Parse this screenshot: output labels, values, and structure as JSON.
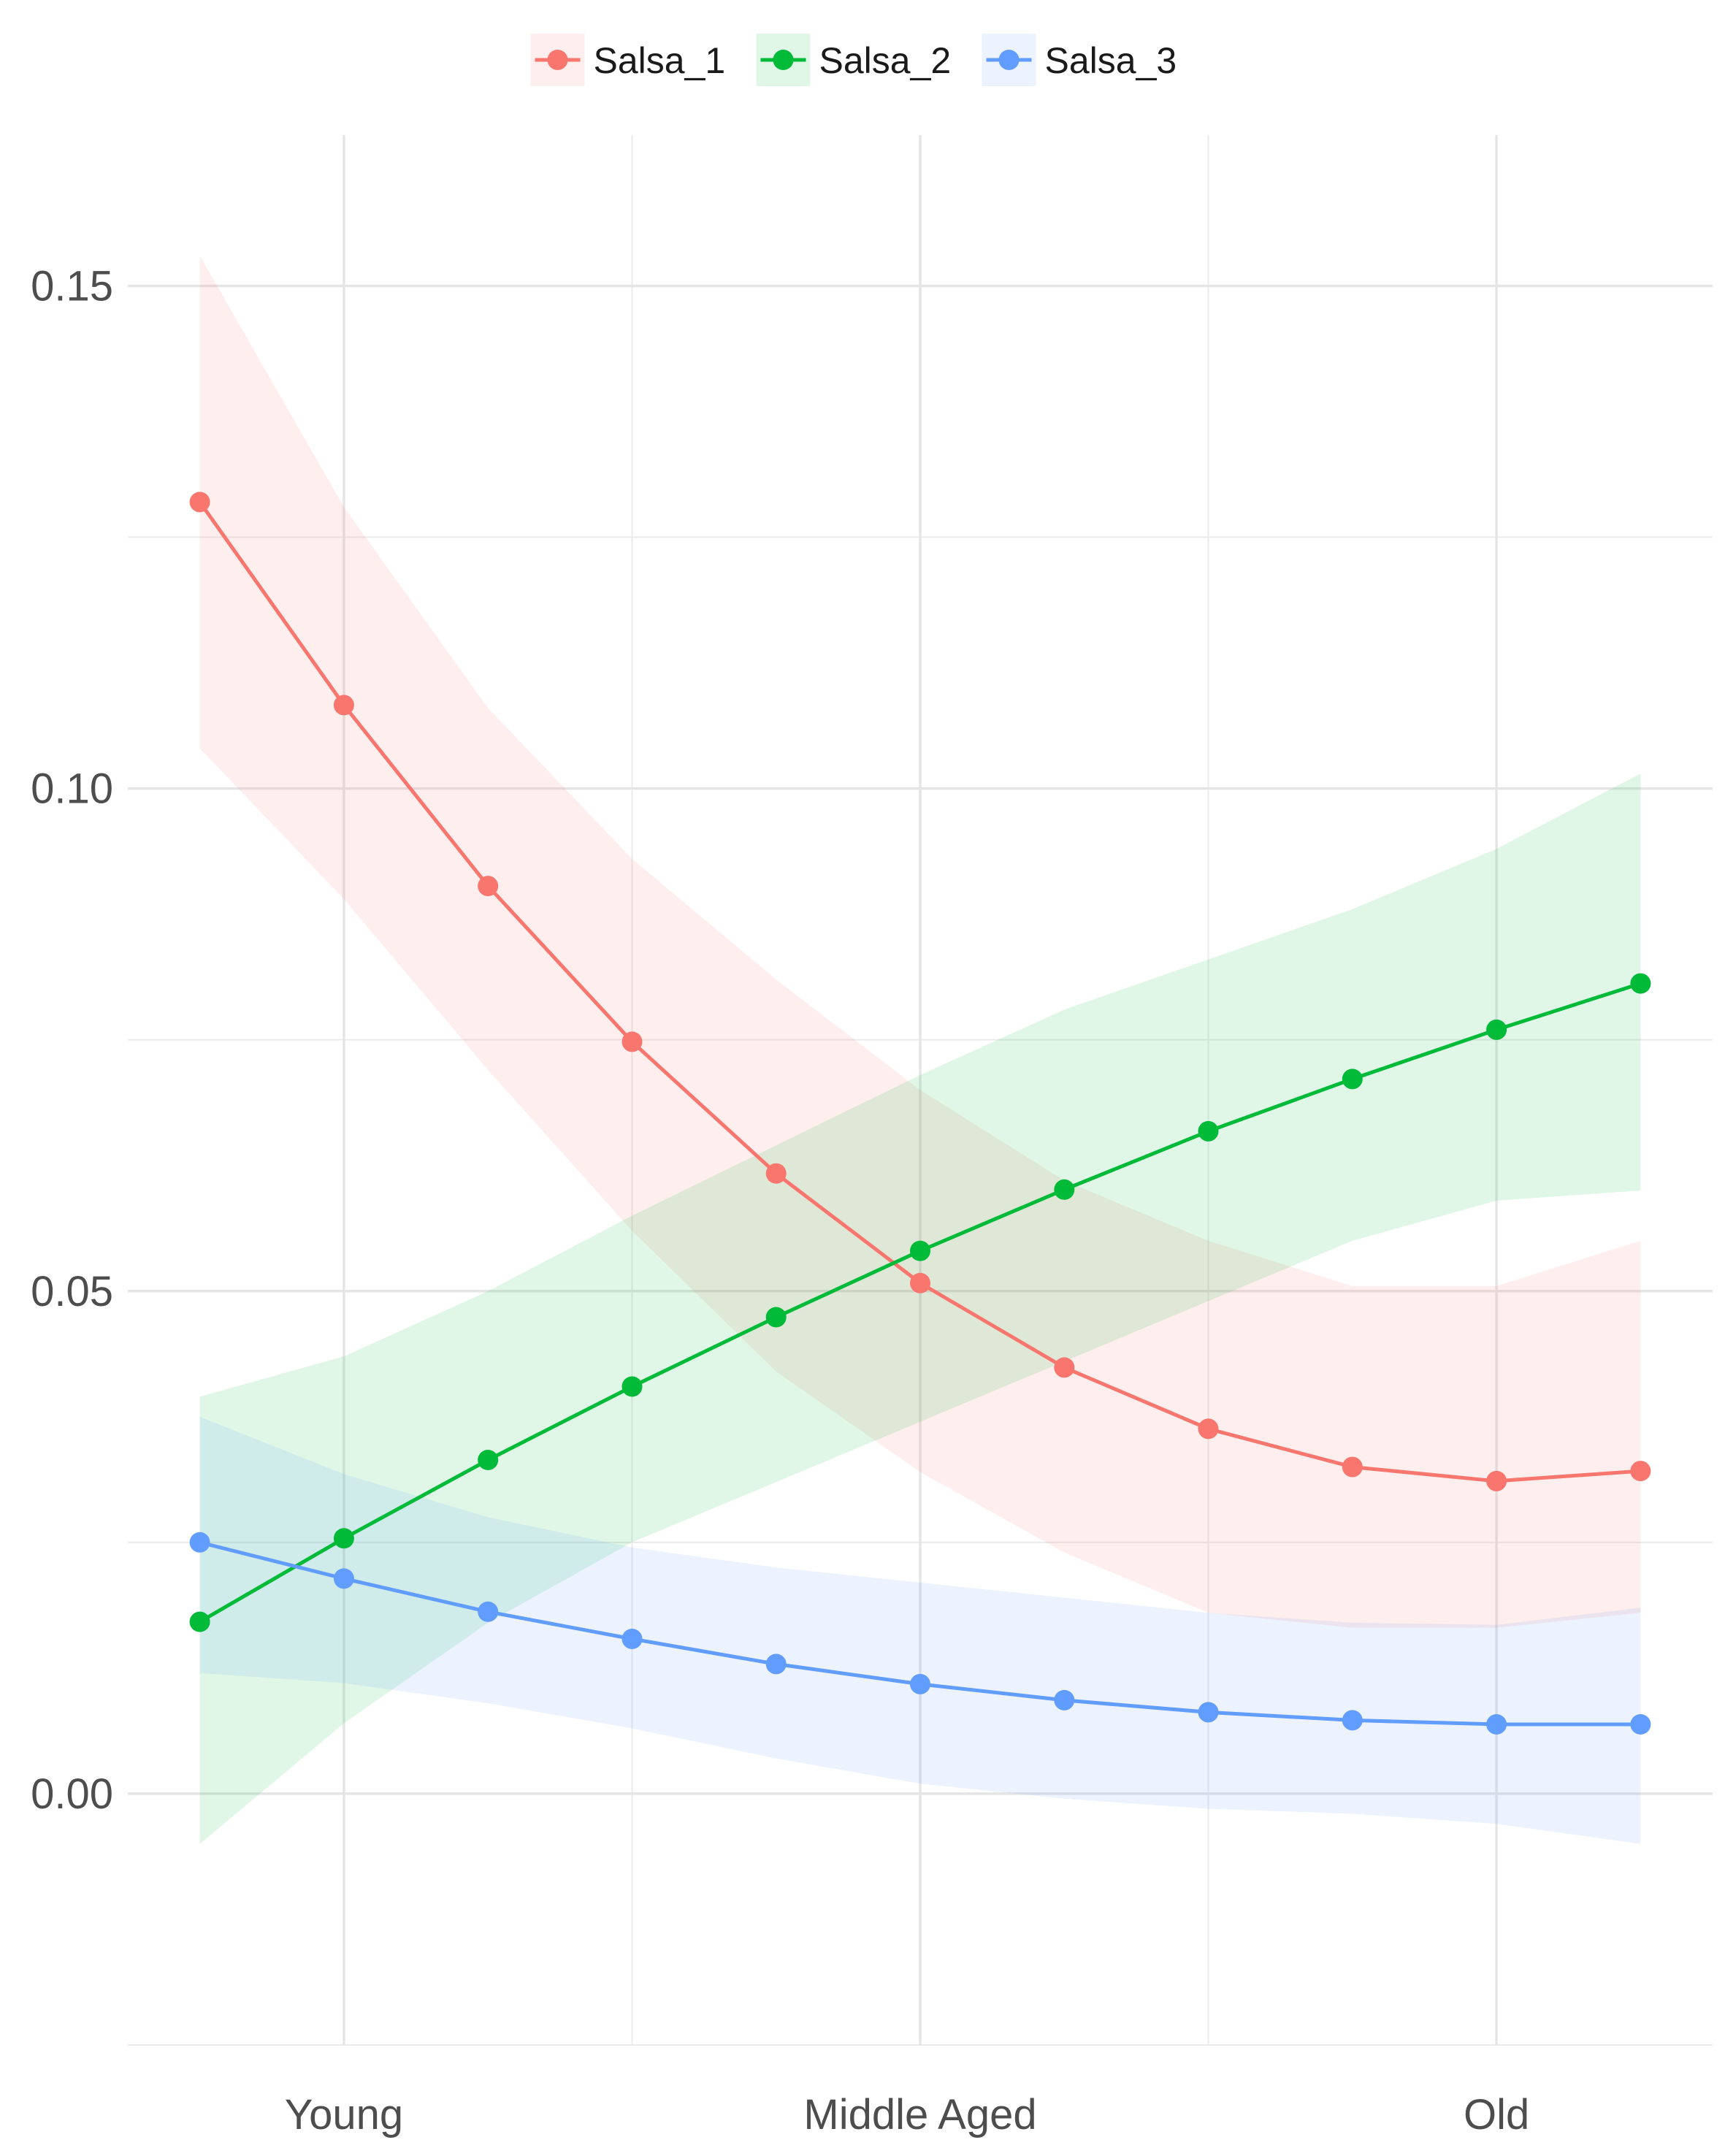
{
  "chart_data": {
    "type": "line",
    "title": "",
    "xlabel": "",
    "ylabel": "",
    "x_tick_labels": [
      {
        "x": 2,
        "label": "Young"
      },
      {
        "x": 6,
        "label": "Middle Aged"
      },
      {
        "x": 10,
        "label": "Old"
      }
    ],
    "x": [
      1,
      2,
      3,
      4,
      5,
      6,
      7,
      8,
      9,
      10,
      11
    ],
    "xlim": [
      0.5,
      11.5
    ],
    "ylim": [
      -0.025,
      0.165
    ],
    "y_ticks": [
      0.0,
      0.05,
      0.1,
      0.15
    ],
    "y_tick_labels": [
      "0.00",
      "0.05",
      "0.10",
      "0.15"
    ],
    "y_minor_ticks": [
      -0.025,
      0.025,
      0.075,
      0.125
    ],
    "x_minor_ticks": [
      4,
      8
    ],
    "grid": true,
    "legend": {
      "position": "top"
    },
    "series": [
      {
        "name": "Salsa_1",
        "color": "#F8766D",
        "values": [
          0.1285,
          0.1083,
          0.0903,
          0.0748,
          0.0617,
          0.0508,
          0.0424,
          0.0363,
          0.0325,
          0.0311,
          0.0321
        ],
        "lower": [
          0.104,
          0.089,
          0.072,
          0.056,
          0.042,
          0.032,
          0.024,
          0.018,
          0.0165,
          0.0165,
          0.018
        ],
        "upper": [
          0.153,
          0.128,
          0.108,
          0.093,
          0.081,
          0.07,
          0.061,
          0.055,
          0.0505,
          0.0505,
          0.055
        ]
      },
      {
        "name": "Salsa_2",
        "color": "#00BA38",
        "values": [
          0.0171,
          0.0254,
          0.0332,
          0.0405,
          0.0474,
          0.054,
          0.0601,
          0.0659,
          0.0711,
          0.076,
          0.0806
        ],
        "lower": [
          -0.005,
          0.007,
          0.017,
          0.025,
          0.031,
          0.037,
          0.043,
          0.049,
          0.055,
          0.059,
          0.06
        ],
        "upper": [
          0.0395,
          0.0435,
          0.05,
          0.0575,
          0.0645,
          0.0715,
          0.078,
          0.083,
          0.088,
          0.094,
          0.1015
        ]
      },
      {
        "name": "Salsa_3",
        "color": "#619CFF",
        "values": [
          0.025,
          0.0214,
          0.0181,
          0.0154,
          0.0129,
          0.0109,
          0.0093,
          0.0081,
          0.0073,
          0.0069,
          0.0069
        ],
        "lower": [
          0.012,
          0.011,
          0.009,
          0.0065,
          0.0035,
          0.001,
          -0.0005,
          -0.0015,
          -0.002,
          -0.003,
          -0.005
        ],
        "upper": [
          0.0375,
          0.0318,
          0.0275,
          0.0245,
          0.0225,
          0.021,
          0.0195,
          0.018,
          0.017,
          0.0168,
          0.0185
        ]
      }
    ]
  }
}
